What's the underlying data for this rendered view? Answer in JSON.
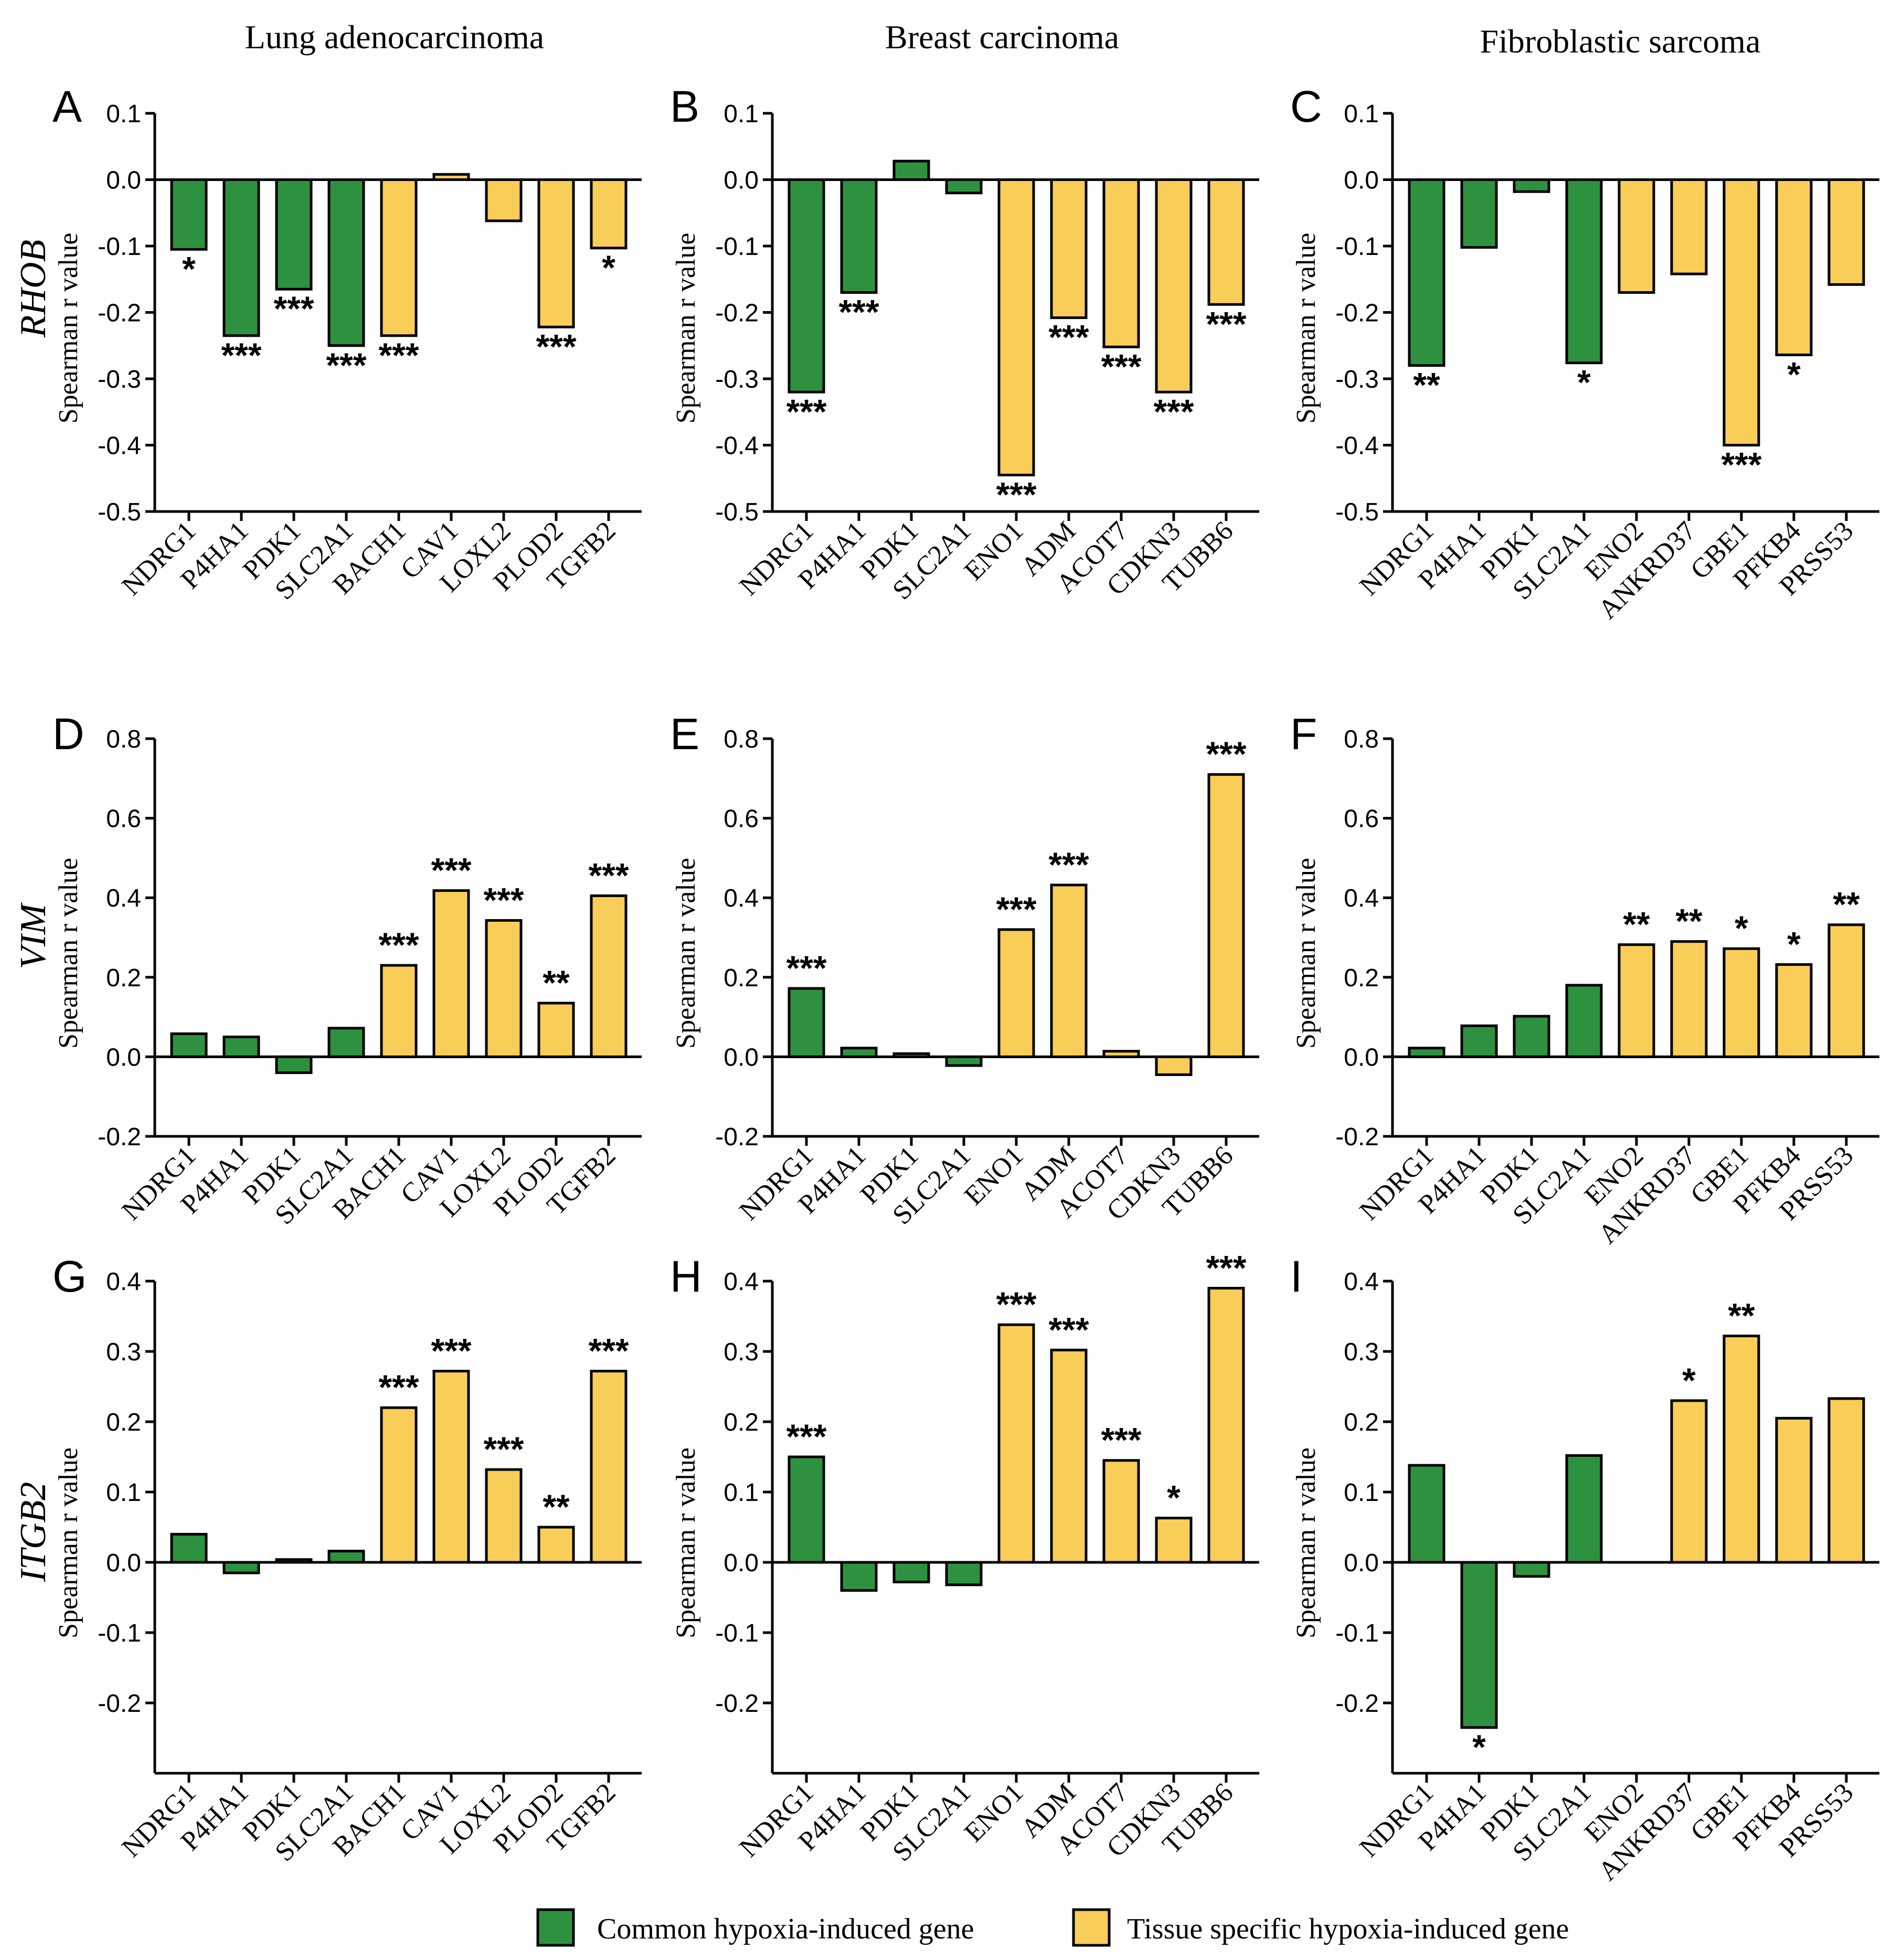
{
  "columns": [
    "Lung adenocarcinoma",
    "Breast carcinoma",
    "Fibroblastic sarcoma"
  ],
  "rows": [
    "RHOB",
    "VIM",
    "ITGB2"
  ],
  "y_axis_label": "Spearman r value",
  "legend": {
    "common": "Common hypoxia-induced gene",
    "tissue": "Tissue specific hypoxia-induced gene"
  },
  "colors": {
    "common": "#2e9140",
    "tissue": "#f8cd58",
    "edge": "#000000"
  },
  "chart_data": [
    {
      "panel": "A",
      "type": "bar",
      "cancer": "Lung adenocarcinoma",
      "gene": "RHOB",
      "categories": [
        "NDRG1",
        "P4HA1",
        "PDK1",
        "SLC2A1",
        "BACH1",
        "CAV1",
        "LOXL2",
        "PLOD2",
        "TGFB2"
      ],
      "values": [
        -0.105,
        -0.235,
        -0.165,
        -0.25,
        -0.235,
        0.008,
        -0.062,
        -0.222,
        -0.103
      ],
      "groups": [
        "common",
        "common",
        "common",
        "common",
        "tissue",
        "tissue",
        "tissue",
        "tissue",
        "tissue"
      ],
      "significance": [
        "*",
        "***",
        "***",
        "***",
        "***",
        "",
        "",
        "***",
        "*"
      ],
      "ylim": [
        -0.5,
        0.1
      ],
      "ticks": [
        "0.1",
        "0.0",
        "-0.1",
        "-0.2",
        "-0.3",
        "-0.4",
        "-0.5"
      ]
    },
    {
      "panel": "B",
      "type": "bar",
      "cancer": "Breast carcinoma",
      "gene": "RHOB",
      "categories": [
        "NDRG1",
        "P4HA1",
        "PDK1",
        "SLC2A1",
        "ENO1",
        "ADM",
        "ACOT7",
        "CDKN3",
        "TUBB6"
      ],
      "values": [
        -0.32,
        -0.17,
        0.028,
        -0.02,
        -0.445,
        -0.208,
        -0.252,
        -0.32,
        -0.188
      ],
      "groups": [
        "common",
        "common",
        "common",
        "common",
        "tissue",
        "tissue",
        "tissue",
        "tissue",
        "tissue"
      ],
      "significance": [
        "***",
        "***",
        "",
        "",
        "***",
        "***",
        "***",
        "***",
        "***"
      ],
      "ylim": [
        -0.5,
        0.1
      ],
      "ticks": [
        "0.1",
        "0.0",
        "-0.1",
        "-0.2",
        "-0.3",
        "-0.4",
        "-0.5"
      ]
    },
    {
      "panel": "C",
      "type": "bar",
      "cancer": "Fibroblastic sarcoma",
      "gene": "RHOB",
      "categories": [
        "NDRG1",
        "P4HA1",
        "PDK1",
        "SLC2A1",
        "ENO2",
        "ANKRD37",
        "GBE1",
        "PFKB4",
        "PRSS53"
      ],
      "values": [
        -0.28,
        -0.102,
        -0.018,
        -0.276,
        -0.17,
        -0.142,
        -0.4,
        -0.264,
        -0.158
      ],
      "groups": [
        "common",
        "common",
        "common",
        "common",
        "tissue",
        "tissue",
        "tissue",
        "tissue",
        "tissue"
      ],
      "significance": [
        "**",
        "",
        "",
        "*",
        "",
        "",
        "***",
        "*",
        ""
      ],
      "ylim": [
        -0.5,
        0.1
      ],
      "ticks": [
        "0.1",
        "0.0",
        "-0.1",
        "-0.2",
        "-0.3",
        "-0.4",
        "-0.5"
      ]
    },
    {
      "panel": "D",
      "type": "bar",
      "cancer": "Lung adenocarcinoma",
      "gene": "VIM",
      "categories": [
        "NDRG1",
        "P4HA1",
        "PDK1",
        "SLC2A1",
        "BACH1",
        "CAV1",
        "LOXL2",
        "PLOD2",
        "TGFB2"
      ],
      "values": [
        0.058,
        0.05,
        -0.04,
        0.072,
        0.23,
        0.418,
        0.343,
        0.135,
        0.405
      ],
      "groups": [
        "common",
        "common",
        "common",
        "common",
        "tissue",
        "tissue",
        "tissue",
        "tissue",
        "tissue"
      ],
      "significance": [
        "",
        "",
        "",
        "",
        "***",
        "***",
        "***",
        "**",
        "***"
      ],
      "ylim": [
        -0.2,
        0.8
      ],
      "ticks": [
        "0.8",
        "0.6",
        "0.4",
        "0.2",
        "0.0",
        "-0.2"
      ]
    },
    {
      "panel": "E",
      "type": "bar",
      "cancer": "Breast carcinoma",
      "gene": "VIM",
      "categories": [
        "NDRG1",
        "P4HA1",
        "PDK1",
        "SLC2A1",
        "ENO1",
        "ADM",
        "ACOT7",
        "CDKN3",
        "TUBB6"
      ],
      "values": [
        0.172,
        0.022,
        0.008,
        -0.022,
        0.32,
        0.432,
        0.014,
        -0.045,
        0.71
      ],
      "groups": [
        "common",
        "common",
        "common",
        "common",
        "tissue",
        "tissue",
        "tissue",
        "tissue",
        "tissue"
      ],
      "significance": [
        "***",
        "",
        "",
        "",
        "***",
        "***",
        "",
        "",
        "***"
      ],
      "ylim": [
        -0.2,
        0.8
      ],
      "ticks": [
        "0.8",
        "0.6",
        "0.4",
        "0.2",
        "0.0",
        "-0.2"
      ]
    },
    {
      "panel": "F",
      "type": "bar",
      "cancer": "Fibroblastic sarcoma",
      "gene": "VIM",
      "categories": [
        "NDRG1",
        "P4HA1",
        "PDK1",
        "SLC2A1",
        "ENO2",
        "ANKRD37",
        "GBE1",
        "PFKB4",
        "PRSS53"
      ],
      "values": [
        0.022,
        0.078,
        0.102,
        0.18,
        0.282,
        0.29,
        0.272,
        0.232,
        0.332
      ],
      "groups": [
        "common",
        "common",
        "common",
        "common",
        "tissue",
        "tissue",
        "tissue",
        "tissue",
        "tissue"
      ],
      "significance": [
        "",
        "",
        "",
        "",
        "**",
        "**",
        "*",
        "*",
        "**"
      ],
      "ylim": [
        -0.2,
        0.8
      ],
      "ticks": [
        "0.8",
        "0.6",
        "0.4",
        "0.2",
        "0.0",
        "-0.2"
      ]
    },
    {
      "panel": "G",
      "type": "bar",
      "cancer": "Lung adenocarcinoma",
      "gene": "ITGB2",
      "categories": [
        "NDRG1",
        "P4HA1",
        "PDK1",
        "SLC2A1",
        "BACH1",
        "CAV1",
        "LOXL2",
        "PLOD2",
        "TGFB2"
      ],
      "values": [
        0.04,
        -0.015,
        0.004,
        0.016,
        0.22,
        0.272,
        0.132,
        0.05,
        0.272
      ],
      "groups": [
        "common",
        "common",
        "common",
        "common",
        "tissue",
        "tissue",
        "tissue",
        "tissue",
        "tissue"
      ],
      "significance": [
        "",
        "",
        "",
        "",
        "***",
        "***",
        "***",
        "**",
        "***"
      ],
      "ylim": [
        -0.3,
        0.4
      ],
      "ticks": [
        "0.4",
        "0.3",
        "0.2",
        "0.1",
        "0.0",
        "-0.1",
        "-0.2"
      ]
    },
    {
      "panel": "H",
      "type": "bar",
      "cancer": "Breast carcinoma",
      "gene": "ITGB2",
      "categories": [
        "NDRG1",
        "P4HA1",
        "PDK1",
        "SLC2A1",
        "ENO1",
        "ADM",
        "ACOT7",
        "CDKN3",
        "TUBB6"
      ],
      "values": [
        0.15,
        -0.04,
        -0.028,
        -0.032,
        0.338,
        0.302,
        0.145,
        0.063,
        0.39
      ],
      "groups": [
        "common",
        "common",
        "common",
        "common",
        "tissue",
        "tissue",
        "tissue",
        "tissue",
        "tissue"
      ],
      "significance": [
        "***",
        "",
        "",
        "",
        "***",
        "***",
        "***",
        "*",
        "***"
      ],
      "ylim": [
        -0.3,
        0.4
      ],
      "ticks": [
        "0.4",
        "0.3",
        "0.2",
        "0.1",
        "0.0",
        "-0.1",
        "-0.2"
      ]
    },
    {
      "panel": "I",
      "type": "bar",
      "cancer": "Fibroblastic sarcoma",
      "gene": "ITGB2",
      "categories": [
        "NDRG1",
        "P4HA1",
        "PDK1",
        "SLC2A1",
        "ENO2",
        "ANKRD37",
        "GBE1",
        "PFKB4",
        "PRSS53"
      ],
      "values": [
        0.138,
        -0.235,
        -0.02,
        0.152,
        0,
        0.23,
        0.322,
        0.205,
        0.233
      ],
      "groups": [
        "common",
        "common",
        "common",
        "common",
        "tissue",
        "tissue",
        "tissue",
        "tissue",
        "tissue"
      ],
      "significance": [
        "",
        "*",
        "",
        "",
        "",
        "*",
        "**",
        "",
        ""
      ],
      "ylim": [
        -0.3,
        0.4
      ],
      "ticks": [
        "0.4",
        "0.3",
        "0.2",
        "0.1",
        "0.0",
        "-0.1",
        "-0.2"
      ]
    }
  ]
}
